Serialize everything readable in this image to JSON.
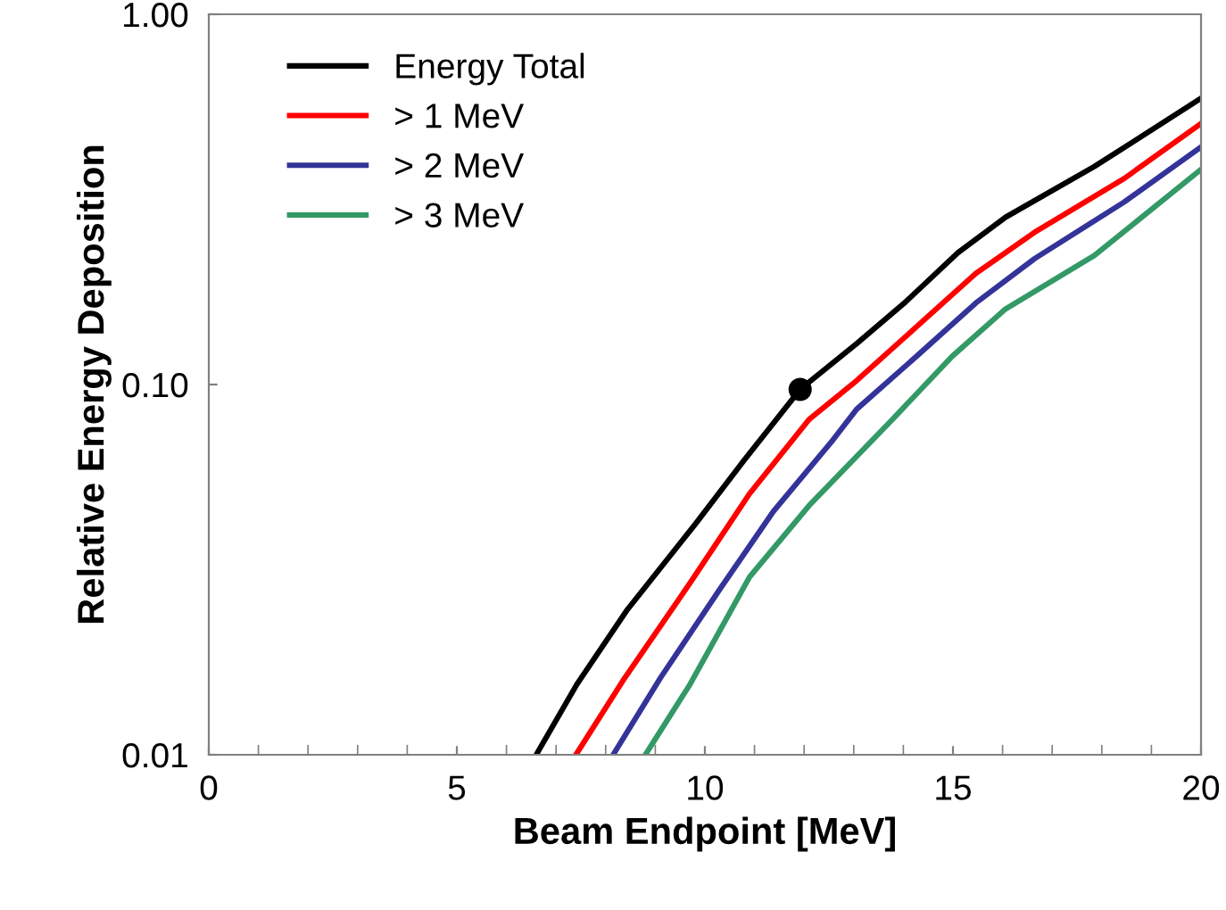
{
  "chart_data": {
    "type": "line",
    "xlabel": "Beam Endpoint [MeV]",
    "ylabel": "Relative Energy Deposition",
    "log": "y",
    "xlim": [
      0,
      20
    ],
    "xticks": [
      0,
      5,
      10,
      15,
      20
    ],
    "ylim": [
      0.01,
      1
    ],
    "yticks": [
      {
        "value": 0.01,
        "label": "0.01"
      },
      {
        "value": 0.1,
        "label": "0.10"
      },
      {
        "value": 1,
        "label": "1.00"
      }
    ],
    "grid": false,
    "legend": "top left",
    "marker": "none",
    "line_style": "solid",
    "series": [
      {
        "name": "Energy Total",
        "color": "#000000",
        "x": [
          6.6,
          7.42,
          8.44,
          9.82,
          10.78,
          11.92,
          13.06,
          14.02,
          15.1,
          16.06,
          17.85,
          20
        ],
        "values": [
          0.01,
          0.0155,
          0.0247,
          0.0422,
          0.0622,
          0.097,
          0.129,
          0.166,
          0.227,
          0.283,
          0.388,
          0.593
        ]
      },
      {
        "name": "> 1 MeV",
        "color": "#ff0000",
        "x": [
          7.4,
          8.38,
          9.7,
          10.9,
          12.1,
          13.06,
          14.26,
          15.46,
          16.65,
          18.45,
          20
        ],
        "values": [
          0.01,
          0.0161,
          0.0291,
          0.0507,
          0.0805,
          0.1025,
          0.143,
          0.1995,
          0.258,
          0.36,
          0.507
        ]
      },
      {
        "name": "> 2 MeV",
        "color": "#333399",
        "x": [
          8.15,
          9.1,
          10.3,
          11.38,
          12.58,
          13.06,
          14.26,
          15.46,
          16.65,
          18.45,
          20
        ],
        "values": [
          0.01,
          0.0161,
          0.028,
          0.0454,
          0.0708,
          0.0858,
          0.119,
          0.166,
          0.219,
          0.311,
          0.438
        ]
      },
      {
        "name": "> 3 MeV",
        "color": "#339966",
        "x": [
          8.8,
          9.7,
          10.9,
          12.1,
          13.78,
          14.98,
          16.06,
          17.85,
          20
        ],
        "values": [
          0.01,
          0.0155,
          0.0302,
          0.0471,
          0.0805,
          0.119,
          0.16,
          0.223,
          0.381
        ]
      },
      {
        "type": "scatter",
        "color": "#000000",
        "marker": "circle",
        "x": [
          11.92
        ],
        "values": [
          0.097
        ]
      }
    ]
  }
}
